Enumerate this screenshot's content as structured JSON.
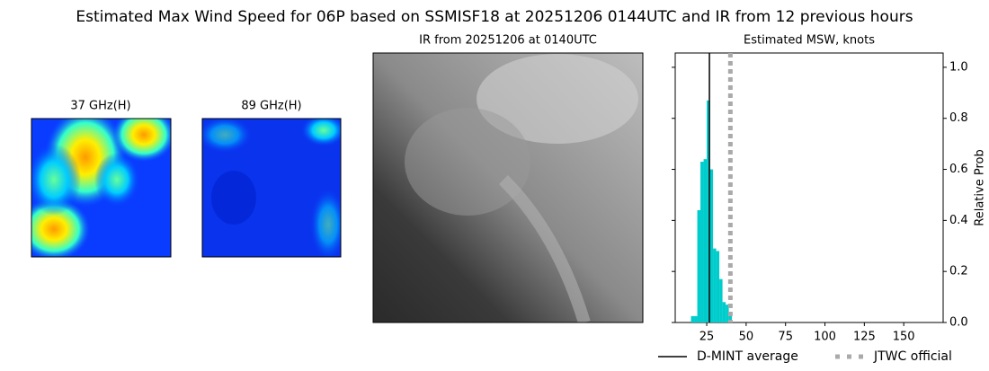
{
  "title": "Estimated Max Wind Speed for 06P based on SSMISF18 at 20251206 0144UTC and IR from 12 previous hours",
  "panels": [
    {
      "title": "37 GHz(H)"
    },
    {
      "title": "89 GHz(H)"
    },
    {
      "title": "IR from 20251206 at 0140UTC"
    }
  ],
  "chart_data": {
    "type": "histogram",
    "title": "Estimated MSW, knots",
    "ylabel": "Relative Prob",
    "bins": [
      15,
      17,
      19,
      21,
      23,
      25,
      27,
      29,
      31,
      33,
      35,
      37,
      39,
      41
    ],
    "values": [
      0.025,
      0.025,
      0.44,
      0.63,
      0.64,
      0.87,
      0.6,
      0.29,
      0.28,
      0.17,
      0.08,
      0.07,
      0.025
    ],
    "color": "#00cccc",
    "xlim": [
      5,
      175
    ],
    "xticks": [
      25,
      50,
      75,
      100,
      125,
      150
    ],
    "ylim": [
      0,
      1.056
    ],
    "yticks": [
      {
        "value": 0,
        "label": "0.0"
      },
      {
        "value": 0.2,
        "label": "0.2"
      },
      {
        "value": 0.4,
        "label": "0.4"
      },
      {
        "value": 0.6,
        "label": "0.6"
      },
      {
        "value": 0.8,
        "label": "0.8"
      },
      {
        "value": 1.0,
        "label": "1.0"
      }
    ],
    "lines": [
      {
        "name": "D-MINT average",
        "value": 26.7,
        "color": "#000000",
        "style": "solid"
      },
      {
        "name": "JTWC official",
        "value": 40,
        "color": "#aaaaaa",
        "style": "dotted"
      }
    ]
  }
}
